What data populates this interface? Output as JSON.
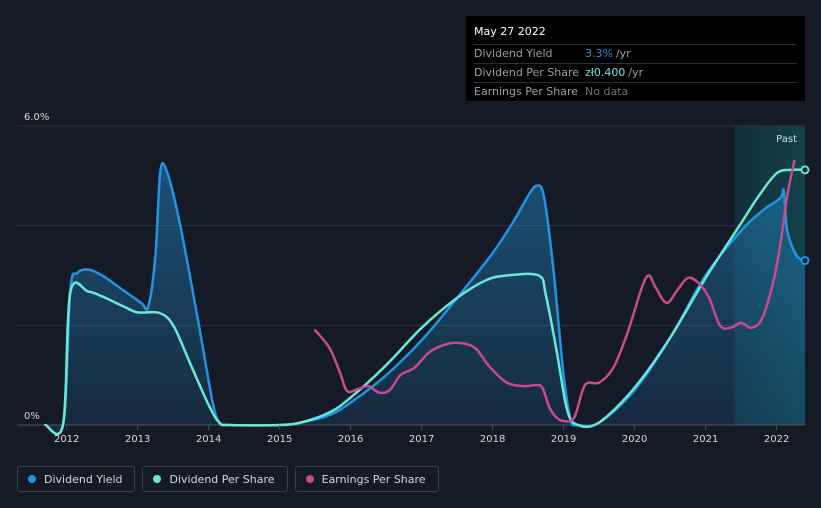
{
  "tooltip": {
    "date": "May 27 2022",
    "rows": [
      {
        "label": "Dividend Yield",
        "value": "3.3%",
        "unit": "/yr",
        "color": "#2394df"
      },
      {
        "label": "Dividend Per Share",
        "value": "zł0.400",
        "unit": "/yr",
        "color": "#6ae8d7"
      },
      {
        "label": "Earnings Per Share",
        "value": "",
        "unit": "",
        "nodata": "No data"
      }
    ]
  },
  "legend": [
    {
      "label": "Dividend Yield",
      "color": "#2394df"
    },
    {
      "label": "Dividend Per Share",
      "color": "#6ae8d7"
    },
    {
      "label": "Earnings Per Share",
      "color": "#c94b8d"
    }
  ],
  "colors": {
    "background": "#151b26",
    "yield": "#2394df",
    "dps": "#6ae8d7",
    "eps": "#c94b8d"
  },
  "chart_data": {
    "type": "line",
    "xlim": [
      2011.3,
      2022.4
    ],
    "ylim": [
      0,
      6.0
    ],
    "y_ticks": [
      {
        "value": 6.0,
        "label": "6.0%"
      },
      {
        "value": 0,
        "label": "0%"
      }
    ],
    "x_ticks": [
      2012,
      2013,
      2014,
      2015,
      2016,
      2017,
      2018,
      2019,
      2020,
      2021,
      2022
    ],
    "past_label": "Past",
    "past_region_start": 2021.4,
    "grid": true,
    "series": [
      {
        "name": "Dividend Yield",
        "key": "yield",
        "fill": true,
        "points": [
          [
            2011.7,
            0
          ],
          [
            2011.95,
            0.02
          ],
          [
            2012.05,
            2.7
          ],
          [
            2012.15,
            3.05
          ],
          [
            2012.3,
            3.12
          ],
          [
            2012.5,
            3.0
          ],
          [
            2012.8,
            2.7
          ],
          [
            2013.05,
            2.45
          ],
          [
            2013.15,
            2.38
          ],
          [
            2013.25,
            3.4
          ],
          [
            2013.32,
            5.1
          ],
          [
            2013.42,
            5.05
          ],
          [
            2013.6,
            4.0
          ],
          [
            2013.85,
            2.1
          ],
          [
            2014.05,
            0.5
          ],
          [
            2014.15,
            0.05
          ],
          [
            2014.3,
            0
          ],
          [
            2015.0,
            0
          ],
          [
            2015.3,
            0.05
          ],
          [
            2015.7,
            0.2
          ],
          [
            2016.0,
            0.45
          ],
          [
            2016.5,
            1.0
          ],
          [
            2017.0,
            1.7
          ],
          [
            2017.5,
            2.55
          ],
          [
            2018.0,
            3.45
          ],
          [
            2018.3,
            4.1
          ],
          [
            2018.5,
            4.6
          ],
          [
            2018.62,
            4.8
          ],
          [
            2018.72,
            4.6
          ],
          [
            2018.85,
            3.2
          ],
          [
            2019.0,
            1.0
          ],
          [
            2019.1,
            0.1
          ],
          [
            2019.2,
            0
          ],
          [
            2019.5,
            0.05
          ],
          [
            2020.0,
            0.7
          ],
          [
            2020.5,
            1.75
          ],
          [
            2021.0,
            3.0
          ],
          [
            2021.5,
            3.9
          ],
          [
            2021.8,
            4.3
          ],
          [
            2022.05,
            4.55
          ],
          [
            2022.1,
            4.7
          ],
          [
            2022.15,
            3.9
          ],
          [
            2022.28,
            3.4
          ],
          [
            2022.4,
            3.3
          ]
        ]
      },
      {
        "name": "Dividend Per Share",
        "key": "dps",
        "fill": false,
        "points": [
          [
            2011.7,
            0
          ],
          [
            2011.95,
            0.02
          ],
          [
            2012.05,
            2.65
          ],
          [
            2012.3,
            2.68
          ],
          [
            2012.5,
            2.58
          ],
          [
            2012.8,
            2.38
          ],
          [
            2013.0,
            2.26
          ],
          [
            2013.3,
            2.25
          ],
          [
            2013.5,
            2.0
          ],
          [
            2013.75,
            1.2
          ],
          [
            2014.0,
            0.4
          ],
          [
            2014.15,
            0.05
          ],
          [
            2014.3,
            0
          ],
          [
            2015.0,
            0
          ],
          [
            2015.3,
            0.05
          ],
          [
            2015.7,
            0.25
          ],
          [
            2016.0,
            0.55
          ],
          [
            2016.5,
            1.2
          ],
          [
            2017.0,
            1.95
          ],
          [
            2017.5,
            2.55
          ],
          [
            2017.9,
            2.9
          ],
          [
            2018.2,
            3.0
          ],
          [
            2018.65,
            3.0
          ],
          [
            2018.75,
            2.6
          ],
          [
            2018.9,
            1.5
          ],
          [
            2019.05,
            0.3
          ],
          [
            2019.2,
            0
          ],
          [
            2019.5,
            0.05
          ],
          [
            2020.0,
            0.75
          ],
          [
            2020.5,
            1.75
          ],
          [
            2021.0,
            2.95
          ],
          [
            2021.5,
            4.05
          ],
          [
            2021.75,
            4.6
          ],
          [
            2022.0,
            5.05
          ],
          [
            2022.2,
            5.12
          ],
          [
            2022.4,
            5.12
          ]
        ]
      },
      {
        "name": "Earnings Per Share",
        "key": "eps",
        "fill": false,
        "points": [
          [
            2015.5,
            1.9
          ],
          [
            2015.7,
            1.55
          ],
          [
            2015.85,
            1.05
          ],
          [
            2015.95,
            0.68
          ],
          [
            2016.1,
            0.72
          ],
          [
            2016.25,
            0.78
          ],
          [
            2016.4,
            0.65
          ],
          [
            2016.55,
            0.7
          ],
          [
            2016.7,
            1.0
          ],
          [
            2016.9,
            1.15
          ],
          [
            2017.1,
            1.45
          ],
          [
            2017.3,
            1.6
          ],
          [
            2017.5,
            1.65
          ],
          [
            2017.75,
            1.55
          ],
          [
            2017.95,
            1.18
          ],
          [
            2018.2,
            0.85
          ],
          [
            2018.45,
            0.78
          ],
          [
            2018.6,
            0.8
          ],
          [
            2018.7,
            0.75
          ],
          [
            2018.8,
            0.35
          ],
          [
            2018.9,
            0.15
          ],
          [
            2019.0,
            0.08
          ],
          [
            2019.15,
            0.15
          ],
          [
            2019.3,
            0.8
          ],
          [
            2019.5,
            0.85
          ],
          [
            2019.7,
            1.15
          ],
          [
            2019.9,
            1.85
          ],
          [
            2020.1,
            2.75
          ],
          [
            2020.2,
            3.0
          ],
          [
            2020.3,
            2.75
          ],
          [
            2020.45,
            2.45
          ],
          [
            2020.6,
            2.7
          ],
          [
            2020.75,
            2.95
          ],
          [
            2020.9,
            2.85
          ],
          [
            2021.05,
            2.55
          ],
          [
            2021.2,
            2.0
          ],
          [
            2021.35,
            1.95
          ],
          [
            2021.5,
            2.05
          ],
          [
            2021.65,
            1.95
          ],
          [
            2021.8,
            2.15
          ],
          [
            2021.95,
            2.85
          ],
          [
            2022.05,
            3.6
          ],
          [
            2022.15,
            4.6
          ],
          [
            2022.25,
            5.3
          ]
        ]
      }
    ]
  }
}
